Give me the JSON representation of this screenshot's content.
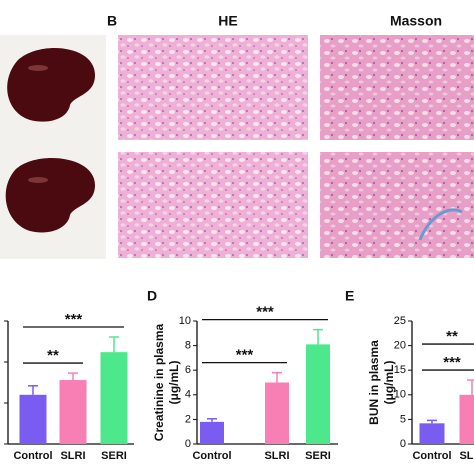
{
  "figure": {
    "panel_labels": [
      "B",
      "D",
      "E"
    ],
    "column_headers": [
      "HE",
      "Masson"
    ]
  },
  "chart_data": [
    {
      "type": "bar",
      "categories": [
        "Control",
        "SLRI",
        "SERI"
      ],
      "values": [
        1.2,
        1.56,
        2.24
      ],
      "errors": [
        0.22,
        0.17,
        0.37
      ],
      "colors": [
        "#7b5cf0",
        "#f77fb3",
        "#4de88b"
      ],
      "ylim": [
        0,
        3
      ],
      "yticks": [
        0,
        1,
        2,
        3
      ],
      "significance": [
        {
          "label": "**",
          "from": 0,
          "to": 1
        },
        {
          "label": "***",
          "from": 0,
          "to": 2
        }
      ]
    },
    {
      "type": "bar",
      "ylabel": [
        "Creatinine in plasma",
        "(μg/mL)"
      ],
      "categories": [
        "Control",
        "SLRI",
        "SERI"
      ],
      "values": [
        1.8,
        5.0,
        8.1
      ],
      "errors": [
        0.25,
        0.8,
        1.2
      ],
      "colors": [
        "#7b5cf0",
        "#f77fb3",
        "#4de88b"
      ],
      "ylim": [
        0,
        10
      ],
      "yticks": [
        0,
        2,
        4,
        6,
        8,
        10
      ],
      "significance": [
        {
          "label": "***",
          "from": 0,
          "to": 1
        },
        {
          "label": "***",
          "from": 0,
          "to": 2
        }
      ]
    },
    {
      "type": "bar",
      "ylabel": [
        "BUN in plasma",
        "(μg/mL)"
      ],
      "categories": [
        "Control",
        "SLRI"
      ],
      "values": [
        4.2,
        10
      ],
      "errors": [
        0.6,
        3
      ],
      "colors": [
        "#7b5cf0",
        "#f77fb3"
      ],
      "ylim": [
        0,
        25
      ],
      "yticks": [
        0,
        5,
        10,
        15,
        20,
        25
      ],
      "significance": [
        {
          "label": "***",
          "from": 0,
          "to": 1
        },
        {
          "label": "**",
          "from": 0,
          "to": 1
        }
      ]
    }
  ]
}
